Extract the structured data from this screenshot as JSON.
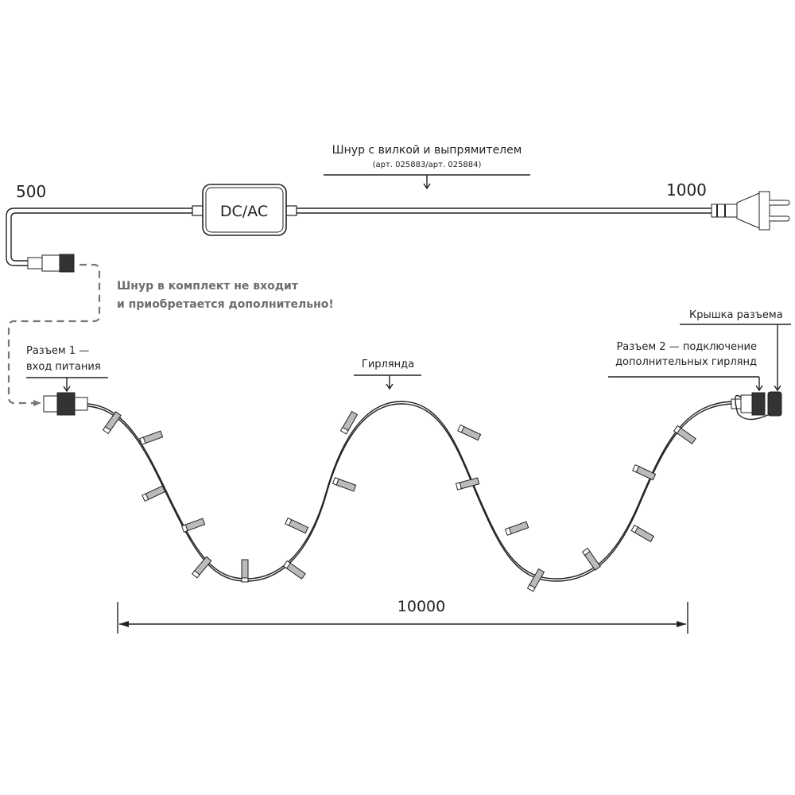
{
  "cord": {
    "title": "Шнур с вилкой и выпрямителем",
    "article": "(арт. 025883/арт. 025884)",
    "box_label": "DC/AC",
    "left_length": "500",
    "right_length": "1000"
  },
  "note": {
    "line1": "Шнур в комплект не входит",
    "line2": "и приобретается дополнительно!",
    "color": "#6d6d6d"
  },
  "connector1": {
    "line1": "Разъем 1 —",
    "line2": "вход питания"
  },
  "garland": {
    "label": "Гирлянда"
  },
  "connector2": {
    "line1": "Разъем 2 — подключение",
    "line2": "дополнительных гирлянд"
  },
  "cap": {
    "label": "Крышка разъема"
  },
  "dimension": {
    "length": "10000"
  }
}
